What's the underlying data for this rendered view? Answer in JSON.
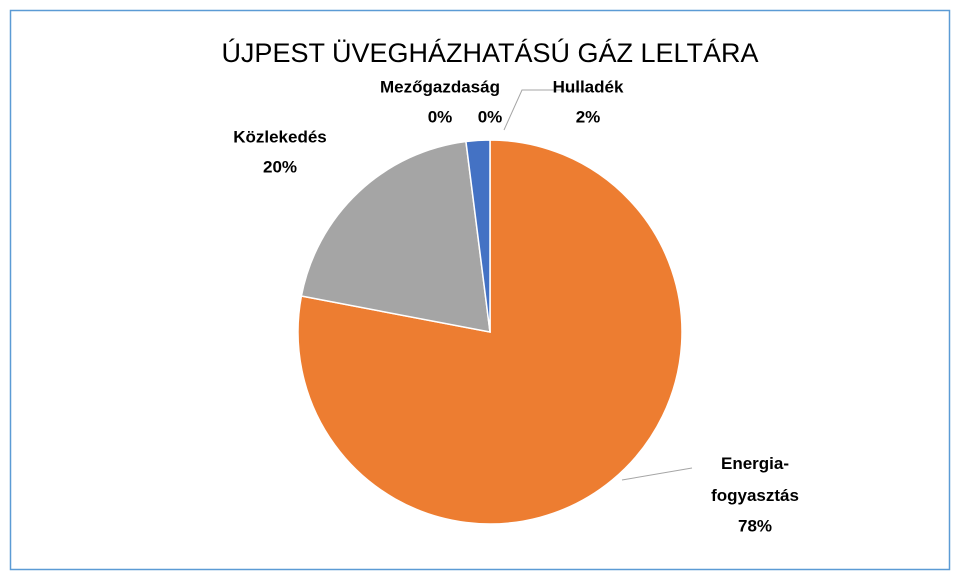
{
  "chart_data": {
    "type": "pie",
    "title": "ÚJPEST ÜVEGHÁZHATÁSÚ GÁZ LELTÁRA",
    "categories": [
      "Energia-fogyasztás",
      "Közlekedés",
      "Mezőgazdaság",
      null,
      "Hulladék"
    ],
    "values": [
      78,
      20,
      0,
      0,
      2
    ],
    "value_labels": [
      "78%",
      "20%",
      "0%",
      "0%",
      "2%"
    ],
    "colors": [
      "#ed7d31",
      "#a5a5a5",
      "#ffc000",
      "#5b9bd5",
      "#4472c4"
    ]
  }
}
